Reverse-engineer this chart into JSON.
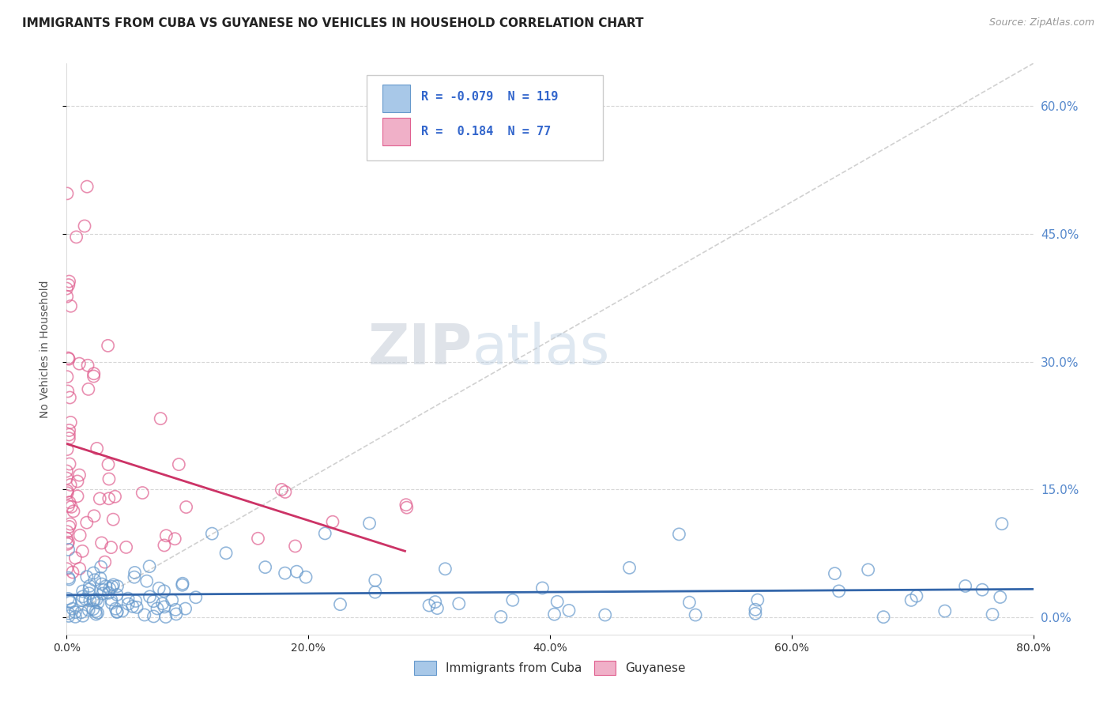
{
  "title": "IMMIGRANTS FROM CUBA VS GUYANESE NO VEHICLES IN HOUSEHOLD CORRELATION CHART",
  "source": "Source: ZipAtlas.com",
  "ylabel": "No Vehicles in Household",
  "legend_bottom": [
    "Immigrants from Cuba",
    "Guyanese"
  ],
  "xmin": 0.0,
  "xmax": 0.8,
  "ymin": -0.02,
  "ymax": 0.65,
  "yticks": [
    0.0,
    0.15,
    0.3,
    0.45,
    0.6
  ],
  "ytick_labels": [
    "0.0%",
    "15.0%",
    "30.0%",
    "45.0%",
    "60.0%"
  ],
  "xticks": [
    0.0,
    0.2,
    0.4,
    0.6,
    0.8
  ],
  "xtick_labels": [
    "0.0%",
    "20.0%",
    "40.0%",
    "60.0%",
    "80.0%"
  ],
  "blue_R": "-0.079",
  "blue_N": "119",
  "pink_R": "0.184",
  "pink_N": "77",
  "blue_color": "#a8c8e8",
  "pink_color": "#f0b0c8",
  "blue_edge_color": "#6699cc",
  "pink_edge_color": "#e06090",
  "blue_line_color": "#3366aa",
  "pink_line_color": "#cc3366",
  "diagonal_color": "#cccccc",
  "watermark_zip": "ZIP",
  "watermark_atlas": "atlas",
  "background_color": "#ffffff",
  "grid_color": "#cccccc",
  "tick_label_color": "#5588cc",
  "legend_box_color": "#dddddd"
}
